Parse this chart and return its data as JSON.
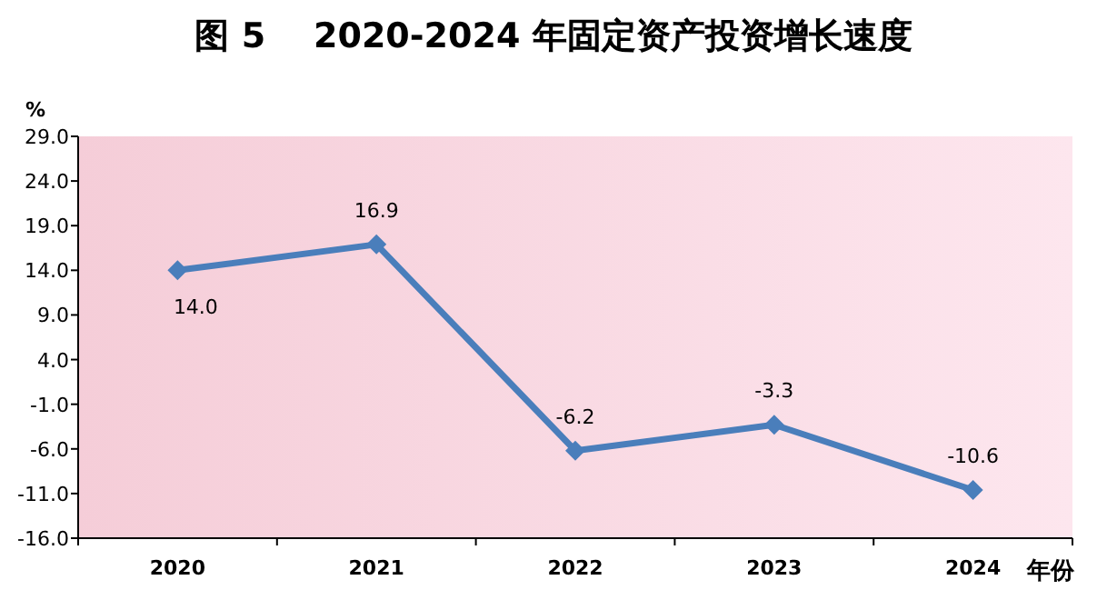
{
  "chart_data": {
    "type": "line",
    "title": "图 5    2020-2024 年固定资产投资增长速度",
    "xlabel": "年份",
    "ylabel": "%",
    "categories": [
      "2020",
      "2021",
      "2022",
      "2023",
      "2024"
    ],
    "series": [
      {
        "color": "#4a7ebb",
        "values": [
          14.0,
          16.9,
          -6.2,
          -3.3,
          -10.6
        ],
        "value_labels": [
          "14.0",
          "16.9",
          "-6.2",
          "-3.3",
          "-10.6"
        ]
      }
    ],
    "ylim": [
      -16,
      29
    ],
    "yticks": [
      {
        "value": 29,
        "label": "29.0"
      },
      {
        "value": 24,
        "label": "24.0"
      },
      {
        "value": 19,
        "label": "19.0"
      },
      {
        "value": 14,
        "label": "14.0"
      },
      {
        "value": 9,
        "label": "9.0"
      },
      {
        "value": 4,
        "label": "4.0"
      },
      {
        "value": -1,
        "label": "-1.0"
      },
      {
        "value": -6,
        "label": "-6.0"
      },
      {
        "value": -11,
        "label": "-11.0"
      },
      {
        "value": -16,
        "label": "-16.0"
      }
    ],
    "marker": "diamond",
    "line_style": "solid"
  }
}
